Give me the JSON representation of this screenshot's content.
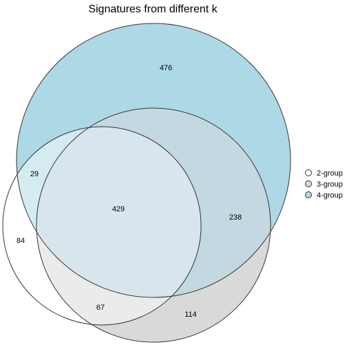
{
  "title": "Signatures from different k",
  "sets": [
    {
      "name": "2-group",
      "color": "#ffffff"
    },
    {
      "name": "3-group",
      "color": "#d9d9d9"
    },
    {
      "name": "4-group",
      "color": "#add8e6"
    }
  ],
  "regions": {
    "only_4": "476",
    "two_and_four": "29",
    "all_three": "429",
    "three_and_four": "238",
    "only_2": "84",
    "two_and_three": "67",
    "only_3": "114"
  }
}
